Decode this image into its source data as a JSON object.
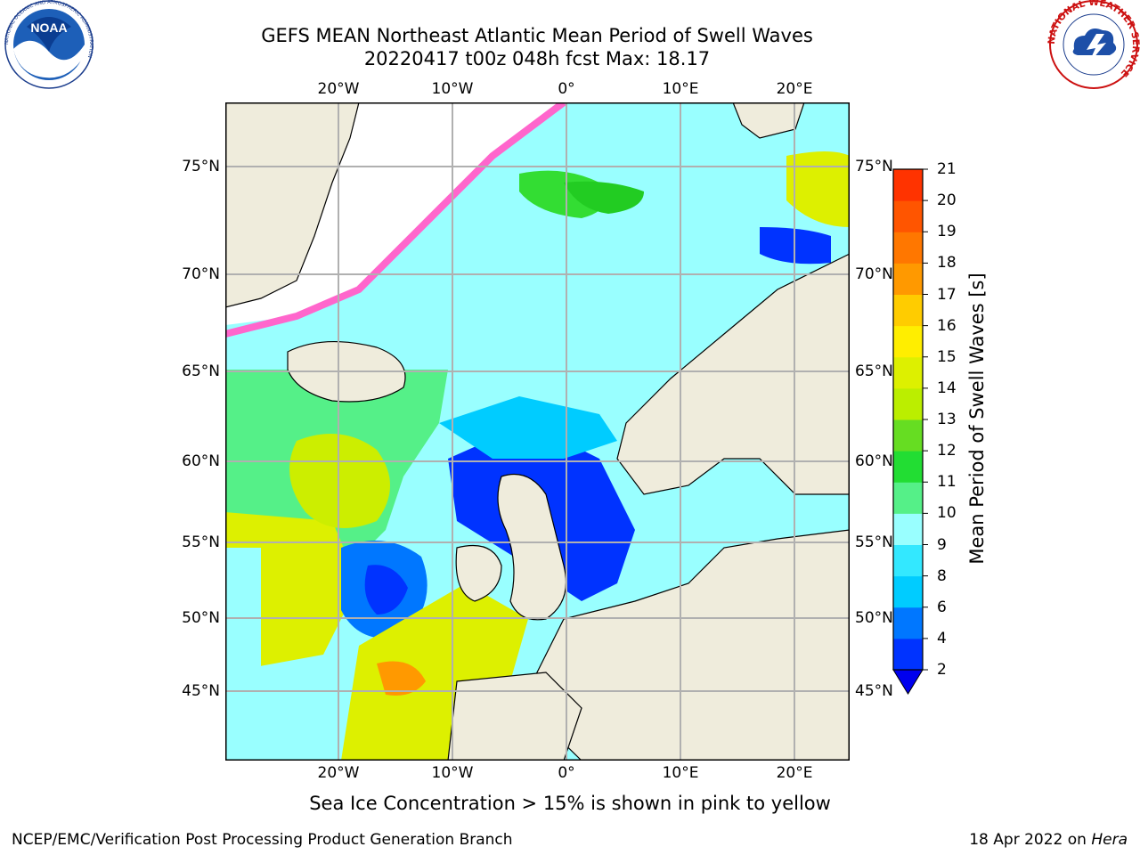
{
  "title": {
    "line1": "GEFS MEAN Northeast Atlantic Mean Period of Swell Waves",
    "line2": "20220417 t00z 048h fcst   Max: 18.17"
  },
  "map": {
    "lon_ticks": [
      "20°W",
      "10°W",
      "0°",
      "10°E",
      "20°E"
    ],
    "lon_values": [
      -20,
      -10,
      0,
      10,
      20
    ],
    "lat_ticks": [
      "75°N",
      "70°N",
      "65°N",
      "60°N",
      "55°N",
      "50°N",
      "45°N"
    ],
    "lat_values": [
      75,
      70,
      65,
      60,
      55,
      50,
      45
    ],
    "lon_range": [
      -30,
      25
    ],
    "lat_range": [
      41,
      78
    ],
    "colors": {
      "land": "#efecdc",
      "ice_edge": "#ff66cc",
      "grid": "#b0b0b0",
      "nodata": "#ffffff"
    }
  },
  "colorbar": {
    "label": "Mean Period of Swell Waves [s]",
    "ticks": [
      "2",
      "4",
      "6",
      "8",
      "9",
      "10",
      "11",
      "12",
      "13",
      "14",
      "15",
      "16",
      "17",
      "18",
      "19",
      "20",
      "21"
    ],
    "colors": [
      "#0033ff",
      "#0077ff",
      "#00ccff",
      "#33e8ff",
      "#99ffff",
      "#55f088",
      "#22dd33",
      "#66dd22",
      "#bbee00",
      "#ddf000",
      "#ffee00",
      "#ffcc00",
      "#ff9900",
      "#ff7700",
      "#ff5500",
      "#ff3300"
    ],
    "underflow_color": "#0000ee"
  },
  "caption": "Sea Ice Concentration > 15% is shown in pink to yellow",
  "footer": {
    "left": "NCEP/EMC/Verification Post Processing Product Generation Branch",
    "right_prefix": "18 Apr 2022 on ",
    "right_host": "Hera"
  },
  "logos": {
    "noaa": {
      "text": "NOAA",
      "ring": "NATIONAL OCEANIC AND ATMOSPHERIC ADMINISTRATION"
    },
    "nws": {
      "ring": "NATIONAL WEATHER SERVICE"
    }
  }
}
